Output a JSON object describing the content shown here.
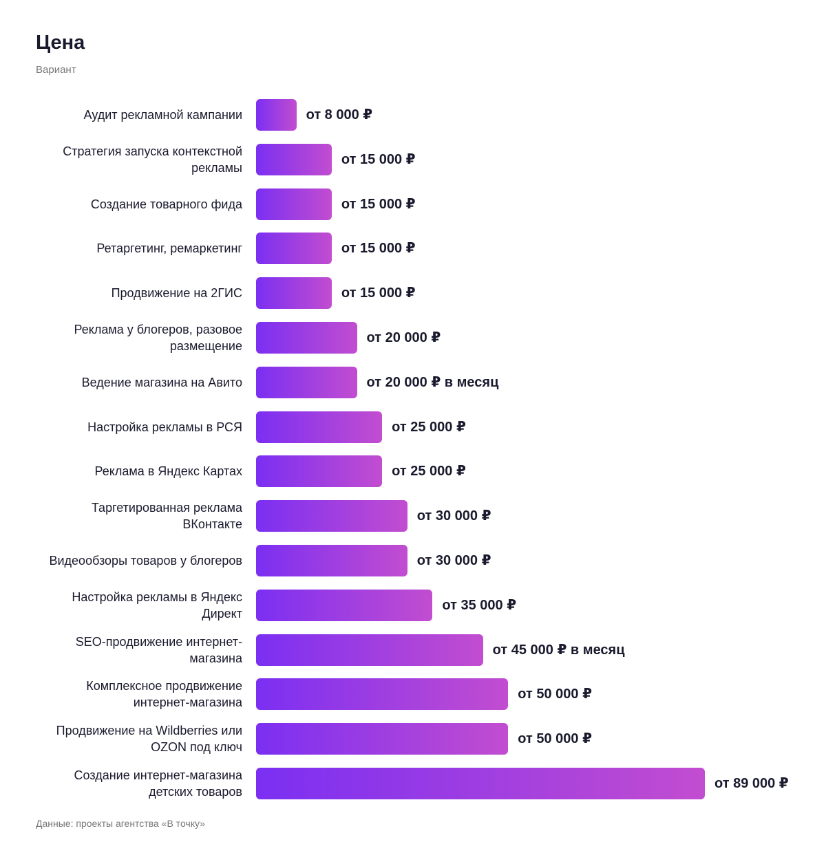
{
  "chart_data": {
    "type": "bar",
    "orientation": "horizontal",
    "title": "Цена",
    "subtitle": "Вариант",
    "source": "Данные: проекты агентства «В точку»",
    "color": [
      "#7b2ff2",
      "#c24dd0"
    ],
    "categories": [
      "Аудит рекламной кампании",
      "Стратегия запуска контекстной рекламы",
      "Создание товарного фида",
      "Ретаргетинг, ремаркетинг",
      "Продвижение на 2ГИС",
      "Реклама у блогеров, разовое размещение",
      "Ведение магазина на Авито",
      "Настройка рекламы в РСЯ",
      "Реклама в Яндекс Картах",
      "Таргетированная реклама ВКонтакте",
      "Видеообзоры товаров у блогеров",
      "Настройка рекламы в Яндекс Директ",
      "SEO-продвижение интернет-магазина",
      "Комплексное продвижение интернет-магазина",
      "Продвижение на Wildberries или OZON под ключ",
      "Создание интернет-магазина детских товаров"
    ],
    "values": [
      8000,
      15000,
      15000,
      15000,
      15000,
      20000,
      20000,
      25000,
      25000,
      30000,
      30000,
      35000,
      45000,
      50000,
      50000,
      89000
    ],
    "value_labels": [
      "от 8 000 ₽",
      "от 15 000 ₽",
      "от 15 000 ₽",
      "от 15 000 ₽",
      "от 15 000 ₽",
      "от 20 000 ₽",
      "от 20 000 ₽ в месяц",
      "от 25 000 ₽",
      "от 25 000 ₽",
      "от 30 000 ₽",
      "от 30 000 ₽",
      "от 35 000 ₽",
      "от 45 000 ₽ в месяц",
      "от 50 000 ₽",
      "от 50 000 ₽",
      "от 89 000 ₽"
    ]
  }
}
